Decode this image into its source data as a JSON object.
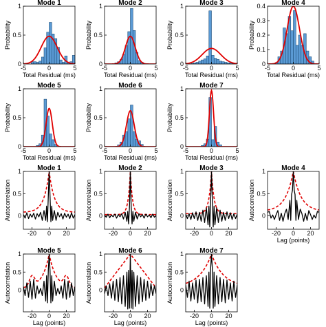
{
  "figure": {
    "histogram_xlabel": "Total Residual (ms)",
    "histogram_ylabel": "Probability",
    "acf_xlabel": "Lag (points)",
    "acf_ylabel": "Autocorrelation"
  },
  "colors": {
    "bar_fill": "#5b9bd5",
    "bar_edge": "#1f4e79",
    "fit_curve": "#e00000",
    "acf_line": "#000000",
    "acf_envelope": "#e00000"
  },
  "chart_data": [
    {
      "type": "bar",
      "panel": "histogram",
      "title": "Mode 1",
      "xlabel": "Total Residual (ms)",
      "ylabel": "Probability",
      "xlim": [
        -5,
        5
      ],
      "ylim": [
        0,
        1
      ],
      "x_ticks": [
        -5,
        0,
        5
      ],
      "y_ticks": [
        0,
        0.5,
        1
      ],
      "bin_width": 0.5,
      "bin_centers": [
        -3.25,
        -2.75,
        -2.25,
        -1.75,
        -1.25,
        -0.75,
        -0.25,
        0.25,
        0.75,
        1.25,
        1.75,
        2.25,
        2.75,
        3.25,
        3.75,
        4.25,
        4.75
      ],
      "values": [
        0.04,
        0.04,
        0.03,
        0.05,
        0.12,
        0.28,
        0.55,
        0.72,
        0.52,
        0.44,
        0.29,
        0.07,
        0.03,
        0.14,
        0.02,
        0.04,
        0.15
      ],
      "fit_peak": 0.48,
      "fit_mu": 0.0,
      "fit_sigma": 1.55
    },
    {
      "type": "bar",
      "panel": "histogram",
      "title": "Mode 2",
      "xlabel": "Total Residual (ms)",
      "ylabel": "Probability",
      "xlim": [
        -5,
        5
      ],
      "ylim": [
        0,
        1
      ],
      "x_ticks": [
        -5,
        0,
        5
      ],
      "y_ticks": [
        0,
        0.5,
        1
      ],
      "bin_width": 0.5,
      "bin_centers": [
        -2.75,
        -2.25,
        -1.75,
        -1.25,
        -0.75,
        -0.25,
        0.25,
        0.75,
        1.25,
        1.75,
        2.25
      ],
      "values": [
        0.02,
        0.04,
        0.08,
        0.17,
        0.32,
        0.56,
        0.96,
        0.58,
        0.2,
        0.06,
        0.03
      ],
      "fit_peak": 0.48,
      "fit_mu": 0.0,
      "fit_sigma": 0.95
    },
    {
      "type": "bar",
      "panel": "histogram",
      "title": "Mode 3",
      "xlabel": "Total Residual (ms)",
      "ylabel": "Probability",
      "xlim": [
        -5,
        5
      ],
      "ylim": [
        0,
        1
      ],
      "x_ticks": [
        -5,
        0,
        5
      ],
      "y_ticks": [
        0,
        0.5,
        1
      ],
      "bin_width": 0.5,
      "bin_centers": [
        -3.75,
        -3.25,
        -2.75,
        -2.25,
        -1.75,
        -1.25,
        -0.75,
        -0.25,
        0.25,
        0.75,
        1.25,
        1.75,
        2.25,
        2.75,
        3.25,
        3.75,
        4.25
      ],
      "values": [
        0.01,
        0.02,
        0.03,
        0.05,
        0.07,
        0.09,
        0.14,
        0.92,
        0.15,
        0.1,
        0.08,
        0.05,
        0.04,
        0.03,
        0.02,
        0.02,
        0.01
      ],
      "fit_peak": 0.27,
      "fit_mu": 0.0,
      "fit_sigma": 1.8
    },
    {
      "type": "bar",
      "panel": "histogram",
      "title": "Mode 4",
      "xlabel": "Total Residual (ms)",
      "ylabel": "Probability",
      "xlim": [
        -5,
        5
      ],
      "ylim": [
        0,
        0.4
      ],
      "x_ticks": [
        -5,
        0,
        5
      ],
      "y_ticks": [
        0,
        0.1,
        0.2,
        0.3,
        0.4
      ],
      "bin_width": 0.5,
      "bin_centers": [
        -3.25,
        -2.75,
        -2.25,
        -1.75,
        -1.25,
        -0.75,
        -0.25,
        0.25,
        0.75,
        1.25,
        1.75,
        2.25,
        2.75,
        3.25,
        3.75
      ],
      "values": [
        0.01,
        0.05,
        0.09,
        0.25,
        0.21,
        0.33,
        0.23,
        0.37,
        0.13,
        0.2,
        0.13,
        0.21,
        0.09,
        0.05,
        0.02
      ],
      "fit_peak": 0.4,
      "fit_mu": 0.0,
      "fit_sigma": 1.2
    },
    {
      "type": "bar",
      "panel": "histogram",
      "title": "Mode 5",
      "xlabel": "Total Residual (ms)",
      "ylabel": "Probability",
      "xlim": [
        -5,
        5
      ],
      "ylim": [
        0,
        1
      ],
      "x_ticks": [
        -5,
        0,
        5
      ],
      "y_ticks": [
        0,
        0.5,
        1
      ],
      "bin_width": 0.5,
      "bin_centers": [
        -2.25,
        -1.75,
        -1.25,
        -0.75,
        -0.25,
        0.25,
        0.75,
        1.25
      ],
      "values": [
        0.02,
        0.05,
        0.2,
        0.82,
        0.53,
        0.22,
        0.12,
        0.04
      ],
      "fit_peak": 0.66,
      "fit_mu": 0.0,
      "fit_sigma": 0.6
    },
    {
      "type": "bar",
      "panel": "histogram",
      "title": "Mode 6",
      "xlabel": "Total Residual (ms)",
      "ylabel": "Probability",
      "xlim": [
        -5,
        5
      ],
      "ylim": [
        0,
        1
      ],
      "x_ticks": [
        -5,
        0,
        5
      ],
      "y_ticks": [
        0,
        0.5,
        1
      ],
      "bin_width": 0.5,
      "bin_centers": [
        -2.25,
        -1.75,
        -1.25,
        -0.75,
        -0.25,
        0.25,
        0.75,
        1.25,
        1.75,
        2.25
      ],
      "values": [
        0.03,
        0.08,
        0.2,
        0.26,
        0.48,
        0.72,
        0.26,
        0.13,
        0.1,
        0.04
      ],
      "fit_peak": 0.62,
      "fit_mu": 0.0,
      "fit_sigma": 0.75
    },
    {
      "type": "bar",
      "panel": "histogram",
      "title": "Mode 7",
      "xlabel": "Total Residual (ms)",
      "ylabel": "Probability",
      "xlim": [
        -5,
        5
      ],
      "ylim": [
        0,
        1
      ],
      "x_ticks": [
        -5,
        0,
        5
      ],
      "y_ticks": [
        0,
        0.5,
        1
      ],
      "bin_width": 0.5,
      "bin_centers": [
        -1.75,
        -1.25,
        -0.75,
        -0.25,
        0.25,
        0.75,
        1.25,
        1.75
      ],
      "values": [
        0.02,
        0.05,
        0.13,
        0.85,
        0.12,
        0.35,
        0.08,
        0.03
      ],
      "fit_peak": 0.97,
      "fit_mu": 0.0,
      "fit_sigma": 0.4
    },
    {
      "type": "line",
      "panel": "autocorrelation",
      "title": "Mode 1",
      "xlabel": "Lag (points)",
      "ylabel": "Autocorrelation",
      "xlim": [
        -30,
        30
      ],
      "ylim": [
        -0.3,
        1
      ],
      "x_ticks": [
        -20,
        0,
        20
      ],
      "y_ticks": [
        0,
        0.5,
        1
      ],
      "lags": [
        -30,
        -28,
        -26,
        -24,
        -22,
        -20,
        -18,
        -16,
        -14,
        -12,
        -10,
        -8,
        -6,
        -4,
        -3,
        -2,
        -1,
        0,
        1,
        2,
        3,
        4,
        6,
        8,
        10,
        12,
        14,
        16,
        18,
        20,
        22,
        24,
        26,
        28,
        30
      ],
      "acf": [
        0.03,
        -0.05,
        0.07,
        -0.06,
        0.04,
        -0.03,
        0.06,
        -0.07,
        0.05,
        -0.02,
        0.08,
        -0.1,
        0.12,
        -0.1,
        0.22,
        -0.13,
        0.45,
        1.0,
        0.45,
        -0.13,
        0.22,
        -0.1,
        0.12,
        -0.1,
        0.08,
        -0.02,
        0.05,
        -0.07,
        0.06,
        -0.03,
        0.04,
        -0.06,
        0.07,
        -0.05,
        0.03
      ],
      "envelope_peak": 1.0,
      "envelope_floor": 0.08,
      "envelope_decay": 6
    },
    {
      "type": "line",
      "panel": "autocorrelation",
      "title": "Mode 2",
      "xlabel": "Lag (points)",
      "ylabel": "Autocorrelation",
      "xlim": [
        -30,
        30
      ],
      "ylim": [
        -0.3,
        1
      ],
      "x_ticks": [
        -20,
        0,
        20
      ],
      "y_ticks": [
        0,
        0.5,
        1
      ],
      "lags": [
        -30,
        -28,
        -26,
        -24,
        -22,
        -20,
        -18,
        -16,
        -14,
        -12,
        -10,
        -8,
        -6,
        -4,
        -3,
        -2,
        -1,
        0,
        1,
        2,
        3,
        4,
        6,
        8,
        10,
        12,
        14,
        16,
        18,
        20,
        22,
        24,
        26,
        28,
        30
      ],
      "acf": [
        0.01,
        -0.03,
        0.04,
        -0.04,
        0.02,
        -0.02,
        0.04,
        -0.05,
        0.03,
        -0.02,
        0.05,
        -0.07,
        0.08,
        -0.12,
        0.1,
        -0.18,
        0.2,
        1.0,
        0.2,
        -0.18,
        0.1,
        -0.12,
        0.08,
        -0.07,
        0.05,
        -0.02,
        0.03,
        -0.05,
        0.04,
        -0.02,
        0.02,
        -0.04,
        0.04,
        -0.03,
        0.01
      ],
      "envelope_peak": 1.0,
      "envelope_floor": 0.03,
      "envelope_decay": 2.5
    },
    {
      "type": "line",
      "panel": "autocorrelation",
      "title": "Mode 3",
      "xlabel": "Lag (points)",
      "ylabel": "Autocorrelation",
      "xlim": [
        -30,
        30
      ],
      "ylim": [
        -0.3,
        1
      ],
      "x_ticks": [
        -20,
        0,
        20
      ],
      "y_ticks": [
        0,
        0.5,
        1
      ],
      "lags": [
        -30,
        -28,
        -26,
        -24,
        -22,
        -20,
        -18,
        -16,
        -14,
        -12,
        -10,
        -8,
        -6,
        -4,
        -3,
        -2,
        -1,
        0,
        1,
        2,
        3,
        4,
        6,
        8,
        10,
        12,
        14,
        16,
        18,
        20,
        22,
        24,
        26,
        28,
        30
      ],
      "acf": [
        0.04,
        -0.06,
        0.05,
        -0.08,
        0.07,
        -0.06,
        0.09,
        -0.1,
        0.08,
        -0.12,
        0.13,
        -0.15,
        0.18,
        -0.2,
        0.22,
        -0.25,
        0.35,
        1.0,
        0.35,
        -0.25,
        0.22,
        -0.2,
        0.18,
        -0.15,
        0.13,
        -0.12,
        0.08,
        -0.1,
        0.09,
        -0.06,
        0.07,
        -0.08,
        0.05,
        -0.06,
        0.04
      ],
      "envelope_peak": 1.0,
      "envelope_floor": 0.05,
      "envelope_decay": 3
    },
    {
      "type": "line",
      "panel": "autocorrelation",
      "title": "Mode 4",
      "xlabel": "Lag (points)",
      "ylabel": "Autocorrelation",
      "xlim": [
        -30,
        30
      ],
      "ylim": [
        -0.3,
        1
      ],
      "x_ticks": [
        -20,
        0,
        20
      ],
      "y_ticks": [
        0,
        0.5,
        1
      ],
      "lags": [
        -30,
        -28,
        -26,
        -24,
        -22,
        -20,
        -18,
        -16,
        -14,
        -12,
        -10,
        -8,
        -6,
        -4,
        -3,
        -2,
        -1,
        0,
        1,
        2,
        3,
        4,
        6,
        8,
        10,
        12,
        14,
        16,
        18,
        20,
        22,
        24,
        26,
        28,
        30
      ],
      "acf": [
        0.08,
        0.1,
        -0.05,
        0.02,
        -0.08,
        0.03,
        0.12,
        -0.1,
        0.06,
        -0.12,
        0.05,
        0.15,
        -0.08,
        0.35,
        -0.1,
        0.48,
        0.58,
        1.0,
        0.58,
        0.48,
        -0.1,
        0.35,
        -0.08,
        0.15,
        0.05,
        -0.12,
        0.06,
        -0.1,
        0.12,
        0.03,
        -0.08,
        0.02,
        -0.05,
        0.1,
        0.08
      ],
      "envelope_peak": 1.0,
      "envelope_floor": 0.1,
      "envelope_decay": 9
    },
    {
      "type": "line",
      "panel": "autocorrelation",
      "title": "Mode 5",
      "xlabel": "Lag (points)",
      "ylabel": "Autocorrelation",
      "xlim": [
        -30,
        30
      ],
      "ylim": [
        -0.6,
        1
      ],
      "x_ticks": [
        -20,
        0,
        20
      ],
      "y_ticks": [
        0,
        0.5,
        1
      ],
      "lags": [
        -30,
        -28,
        -26,
        -24,
        -22,
        -20,
        -18,
        -16,
        -14,
        -12,
        -10,
        -8,
        -6,
        -4,
        -3,
        -2,
        -1,
        0,
        1,
        2,
        3,
        4,
        6,
        8,
        10,
        12,
        14,
        16,
        18,
        20,
        22,
        24,
        26,
        28,
        30
      ],
      "acf": [
        0.1,
        -0.15,
        0.2,
        -0.2,
        0.25,
        -0.25,
        0.3,
        -0.22,
        0.12,
        -0.1,
        0.05,
        -0.15,
        0.25,
        -0.3,
        0.4,
        -0.35,
        0.55,
        1.0,
        0.55,
        -0.35,
        0.4,
        -0.3,
        0.25,
        -0.15,
        0.05,
        -0.1,
        0.12,
        -0.22,
        0.3,
        -0.25,
        0.25,
        -0.2,
        0.2,
        -0.15,
        0.1
      ],
      "envelope_peak": 1.0,
      "envelope_floor": 0.05,
      "envelope_decay": 8,
      "envelope_side_peak": 0.28,
      "envelope_side_lag": 20
    },
    {
      "type": "line",
      "panel": "autocorrelation",
      "title": "Mode 6",
      "xlabel": "Lag (points)",
      "ylabel": "Autocorrelation",
      "xlim": [
        -30,
        30
      ],
      "ylim": [
        -0.6,
        1
      ],
      "x_ticks": [
        -20,
        0,
        20
      ],
      "y_ticks": [
        0,
        0.5,
        1
      ],
      "lags": [
        -30,
        -28,
        -26,
        -24,
        -22,
        -20,
        -18,
        -16,
        -14,
        -12,
        -10,
        -8,
        -6,
        -4,
        -3,
        -2,
        -1,
        0,
        1,
        2,
        3,
        4,
        6,
        8,
        10,
        12,
        14,
        16,
        18,
        20,
        22,
        24,
        26,
        28,
        30
      ],
      "acf": [
        -0.1,
        0.12,
        -0.15,
        0.18,
        -0.22,
        0.25,
        -0.28,
        0.3,
        -0.32,
        0.35,
        -0.38,
        0.4,
        -0.45,
        0.5,
        -0.52,
        0.55,
        -0.5,
        1.0,
        -0.5,
        0.55,
        -0.52,
        0.5,
        -0.45,
        0.4,
        -0.38,
        0.35,
        -0.32,
        0.3,
        -0.28,
        0.25,
        -0.22,
        0.18,
        -0.15,
        0.12,
        -0.1
      ],
      "envelope_peak": 1.0,
      "envelope_floor": 0.0,
      "envelope_decay": 30,
      "envelope_shape": "linear"
    },
    {
      "type": "line",
      "panel": "autocorrelation",
      "title": "Mode 7",
      "xlabel": "Lag (points)",
      "ylabel": "Autocorrelation",
      "xlim": [
        -30,
        30
      ],
      "ylim": [
        -0.6,
        1
      ],
      "x_ticks": [
        -20,
        0,
        20
      ],
      "y_ticks": [
        0,
        0.5,
        1
      ],
      "lags": [
        -30,
        -28,
        -26,
        -24,
        -22,
        -20,
        -18,
        -16,
        -14,
        -12,
        -10,
        -8,
        -6,
        -4,
        -3,
        -2,
        -1,
        0,
        1,
        2,
        3,
        4,
        6,
        8,
        10,
        12,
        14,
        16,
        18,
        20,
        22,
        24,
        26,
        28,
        30
      ],
      "acf": [
        0.15,
        -0.2,
        0.25,
        -0.3,
        0.2,
        -0.25,
        0.28,
        -0.35,
        0.3,
        -0.32,
        0.35,
        -0.38,
        0.4,
        -0.45,
        0.5,
        -0.5,
        0.6,
        1.0,
        0.6,
        -0.5,
        0.5,
        -0.45,
        0.4,
        -0.38,
        0.35,
        -0.32,
        0.3,
        -0.35,
        0.28,
        -0.25,
        0.2,
        -0.3,
        0.25,
        -0.2,
        0.15
      ],
      "envelope_peak": 1.0,
      "envelope_floor": 0.08,
      "envelope_decay": 14
    }
  ]
}
